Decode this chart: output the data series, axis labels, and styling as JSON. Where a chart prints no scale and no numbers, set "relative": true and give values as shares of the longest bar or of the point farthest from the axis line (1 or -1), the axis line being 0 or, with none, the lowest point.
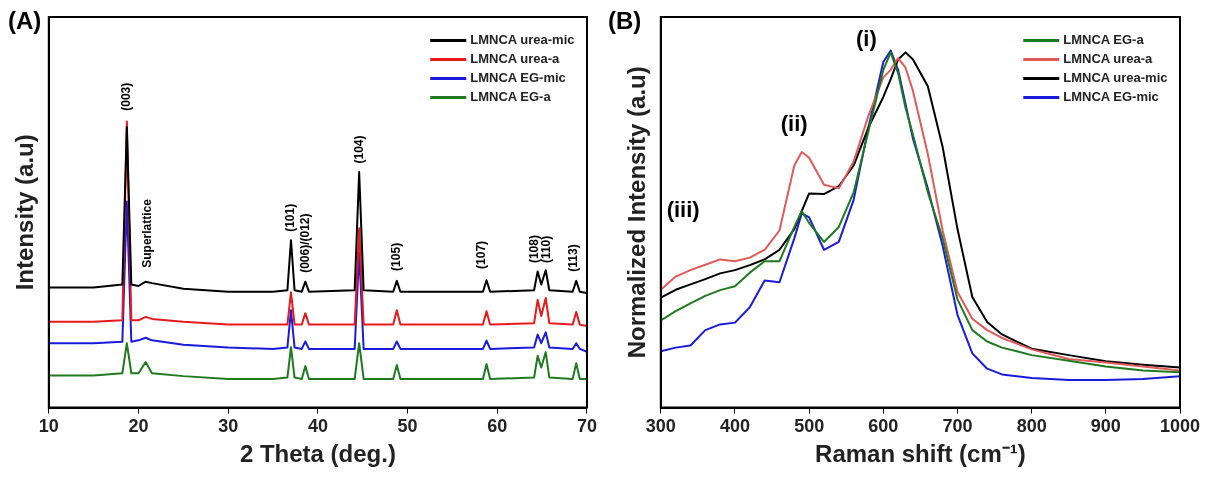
{
  "chart_data": [
    {
      "type": "line",
      "relative": true,
      "xlabel": "2 Theta (deg.)",
      "ylabel": "Intensity (a.u)",
      "xlim": [
        10,
        70
      ],
      "xticks": [
        10,
        20,
        30,
        40,
        50,
        60,
        70
      ],
      "legend": "top right",
      "grid": false,
      "marker": "none",
      "x": [
        10,
        15,
        18.2,
        18.7,
        19.2,
        20,
        20.8,
        21.5,
        25,
        30,
        35,
        36.6,
        37,
        37.4,
        38.2,
        38.6,
        39,
        44.1,
        44.6,
        45.1,
        48.4,
        48.8,
        49.2,
        58.4,
        58.8,
        59.2,
        64.1,
        64.5,
        64.9,
        65.4,
        65.8,
        68.4,
        68.8,
        69.2,
        70
      ],
      "series": [
        {
          "name": "LMNCA urea-mic",
          "color": "#000000",
          "values": [
            0.42,
            0.42,
            0.43,
            0.98,
            0.43,
            0.425,
            0.44,
            0.435,
            0.415,
            0.405,
            0.405,
            0.41,
            0.585,
            0.41,
            0.405,
            0.44,
            0.405,
            0.41,
            0.823,
            0.41,
            0.405,
            0.443,
            0.405,
            0.405,
            0.445,
            0.405,
            0.41,
            0.476,
            0.43,
            0.48,
            0.41,
            0.405,
            0.443,
            0.405,
            0.4
          ]
        },
        {
          "name": "LMNCA urea-a",
          "color": "#e8191c",
          "values": [
            0.3,
            0.3,
            0.305,
            1.0,
            0.305,
            0.305,
            0.317,
            0.31,
            0.3,
            0.29,
            0.29,
            0.29,
            0.403,
            0.29,
            0.29,
            0.33,
            0.29,
            0.29,
            0.627,
            0.29,
            0.29,
            0.34,
            0.29,
            0.29,
            0.337,
            0.29,
            0.295,
            0.376,
            0.32,
            0.383,
            0.295,
            0.29,
            0.334,
            0.29,
            0.285
          ]
        },
        {
          "name": "LMNCA EG-mic",
          "color": "#1a1adb",
          "values": [
            0.225,
            0.225,
            0.23,
            0.72,
            0.23,
            0.235,
            0.244,
            0.235,
            0.22,
            0.21,
            0.205,
            0.21,
            0.34,
            0.21,
            0.205,
            0.231,
            0.205,
            0.205,
            0.542,
            0.205,
            0.205,
            0.231,
            0.205,
            0.205,
            0.234,
            0.205,
            0.21,
            0.255,
            0.225,
            0.263,
            0.21,
            0.205,
            0.225,
            0.205,
            0.195
          ]
        },
        {
          "name": "LMNCA EG-a",
          "color": "#1f7a1f",
          "values": [
            0.112,
            0.112,
            0.12,
            0.225,
            0.12,
            0.12,
            0.159,
            0.12,
            0.11,
            0.1,
            0.1,
            0.105,
            0.211,
            0.105,
            0.1,
            0.145,
            0.1,
            0.1,
            0.225,
            0.1,
            0.1,
            0.149,
            0.1,
            0.1,
            0.152,
            0.1,
            0.105,
            0.181,
            0.14,
            0.194,
            0.105,
            0.1,
            0.155,
            0.1,
            0.1
          ]
        }
      ],
      "annotations": [
        "(A)",
        "(003)",
        "Superlattice",
        "(101)",
        "(006)/(012)",
        "(104)",
        "(105)",
        "(107)",
        "(108)",
        "(110)",
        "(113)"
      ]
    },
    {
      "type": "line",
      "relative": true,
      "xlabel": "Raman shift (cm⁻¹)",
      "ylabel": "Normalized Intensity (a.u)",
      "xlim": [
        300,
        1000
      ],
      "xticks": [
        300,
        400,
        500,
        600,
        700,
        800,
        900,
        1000
      ],
      "legend": "top right",
      "grid": false,
      "marker": "none",
      "x": [
        300,
        320,
        340,
        360,
        380,
        400,
        420,
        440,
        460,
        480,
        490,
        500,
        520,
        540,
        560,
        580,
        600,
        610,
        620,
        630,
        640,
        660,
        680,
        700,
        720,
        740,
        760,
        780,
        800,
        850,
        900,
        950,
        1000
      ],
      "series": [
        {
          "name": "LMNCA EG-a",
          "color": "#1f7a1f",
          "values": [
            0.244,
            0.27,
            0.292,
            0.313,
            0.329,
            0.34,
            0.378,
            0.41,
            0.41,
            0.506,
            0.55,
            0.517,
            0.464,
            0.506,
            0.603,
            0.775,
            0.946,
            0.995,
            0.936,
            0.839,
            0.764,
            0.603,
            0.474,
            0.303,
            0.217,
            0.185,
            0.168,
            0.158,
            0.147,
            0.131,
            0.115,
            0.104,
            0.099
          ]
        },
        {
          "name": "LMNCA urea-a",
          "color": "#e05a5a",
          "values": [
            0.33,
            0.367,
            0.385,
            0.4,
            0.415,
            0.41,
            0.42,
            0.442,
            0.496,
            0.678,
            0.716,
            0.7,
            0.624,
            0.614,
            0.689,
            0.818,
            0.925,
            0.946,
            0.979,
            0.952,
            0.887,
            0.71,
            0.496,
            0.324,
            0.249,
            0.217,
            0.195,
            0.179,
            0.163,
            0.136,
            0.126,
            0.115,
            0.104
          ]
        },
        {
          "name": "LMNCA urea-mic",
          "color": "#000000",
          "values": [
            0.308,
            0.33,
            0.345,
            0.36,
            0.376,
            0.385,
            0.399,
            0.415,
            0.442,
            0.5,
            0.55,
            0.6,
            0.598,
            0.62,
            0.678,
            0.785,
            0.87,
            0.92,
            0.975,
            0.995,
            0.975,
            0.9,
            0.73,
            0.5,
            0.31,
            0.24,
            0.205,
            0.185,
            0.165,
            0.147,
            0.13,
            0.12,
            0.112
          ]
        },
        {
          "name": "LMNCA EG-mic",
          "color": "#1a1adb",
          "values": [
            0.158,
            0.168,
            0.174,
            0.217,
            0.233,
            0.238,
            0.281,
            0.356,
            0.351,
            0.474,
            0.544,
            0.533,
            0.442,
            0.464,
            0.582,
            0.785,
            0.968,
            1.0,
            0.946,
            0.85,
            0.753,
            0.614,
            0.453,
            0.26,
            0.152,
            0.109,
            0.093,
            0.088,
            0.083,
            0.077,
            0.077,
            0.08,
            0.088
          ]
        }
      ],
      "annotations": [
        "(B)",
        "(i)",
        "(ii)",
        "(iii)"
      ]
    }
  ]
}
